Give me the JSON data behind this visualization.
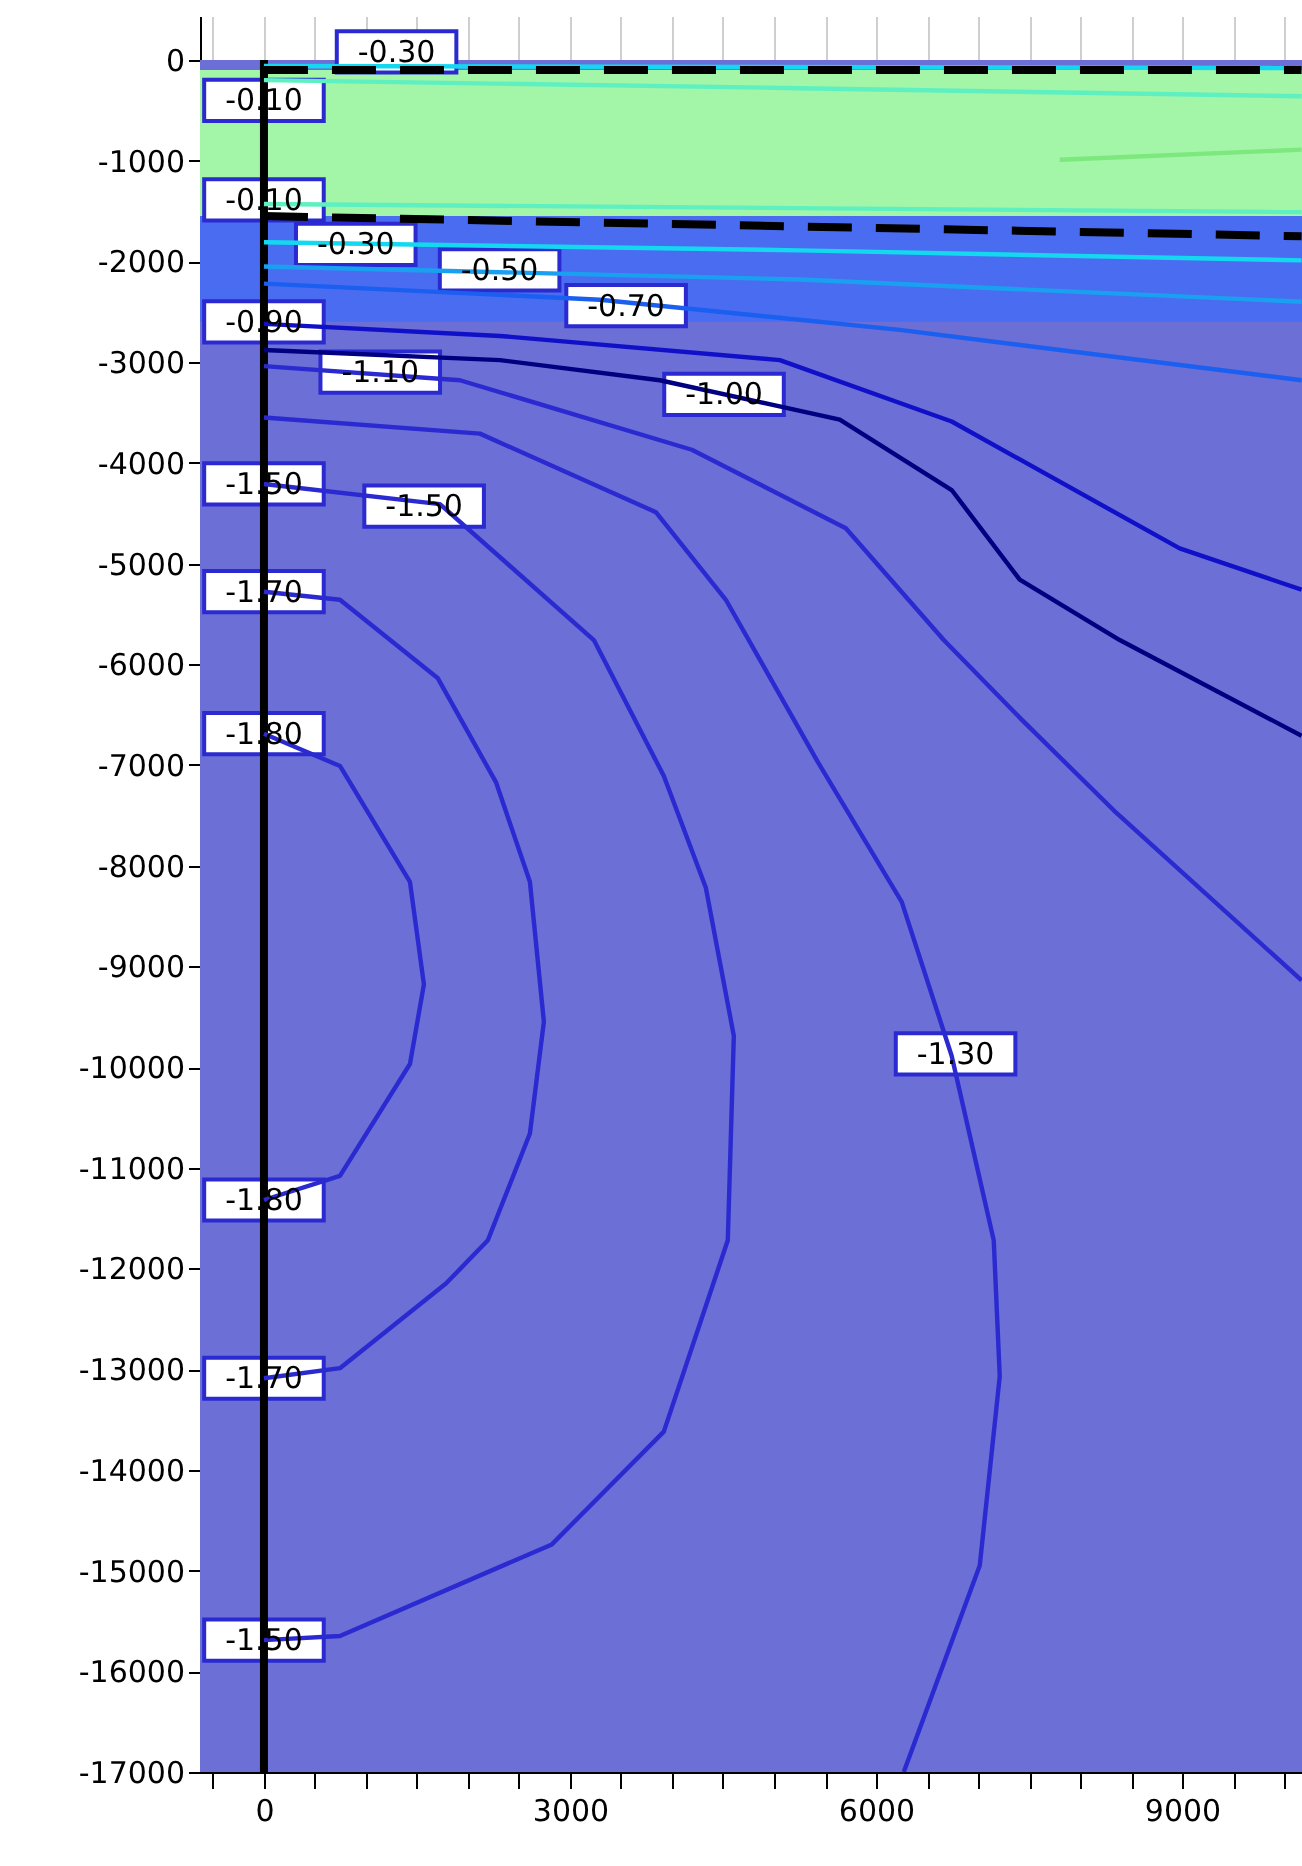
{
  "chart_data": {
    "type": "line",
    "xlim": [
      -627,
      10176
    ],
    "ylim": [
      -17000,
      437
    ],
    "xticks": [
      {
        "value": -500,
        "label": null
      },
      0,
      {
        "value": 500,
        "label": null
      },
      {
        "value": 1000,
        "label": null
      },
      {
        "value": 1500,
        "label": null
      },
      {
        "value": 2000,
        "label": null
      },
      {
        "value": 2500,
        "label": null
      },
      3000,
      {
        "value": 3500,
        "label": null
      },
      {
        "value": 4000,
        "label": null
      },
      {
        "value": 4500,
        "label": null
      },
      {
        "value": 5000,
        "label": null
      },
      {
        "value": 5500,
        "label": null
      },
      6000,
      {
        "value": 6500,
        "label": null
      },
      {
        "value": 7000,
        "label": null
      },
      {
        "value": 7500,
        "label": null
      },
      {
        "value": 8000,
        "label": null
      },
      {
        "value": 8500,
        "label": null
      },
      9000,
      {
        "value": 9500,
        "label": null
      },
      {
        "value": 10000,
        "label": null
      }
    ],
    "yticks": [
      0,
      -1000,
      -2000,
      -3000,
      -4000,
      -5000,
      -6000,
      -7000,
      -8000,
      -9000,
      -10000,
      -11000,
      -12000,
      -13000,
      -14000,
      -15000,
      -16000,
      -17000
    ],
    "grid": true,
    "bands": [
      {
        "axis": "y",
        "from": -17000,
        "to": 0,
        "color": "#6b6fd6"
      },
      {
        "axis": "y",
        "from": -1550,
        "to": -100,
        "color": "#a3f5a8"
      },
      {
        "axis": "y",
        "from": -2600,
        "to": -1550,
        "color": "#4a6cf0"
      }
    ],
    "ref_lines": [
      {
        "axis": "x",
        "value": 0,
        "color": "#000000"
      }
    ],
    "series": [
      {
        "color": "#14d8f0",
        "x": [
          0,
          10172
        ],
        "values": [
          -60,
          -80
        ]
      },
      {
        "color": "#5ef0c0",
        "x": [
          0,
          5253,
          10172
        ],
        "values": [
          -200,
          -280,
          -360
        ]
      },
      {
        "color": "#7de87d",
        "x": [
          7801,
          10172
        ],
        "values": [
          -990,
          -890
        ]
      },
      {
        "color": "#5ef0c0",
        "x": [
          0,
          10172
        ],
        "values": [
          -1430,
          -1510
        ]
      },
      {
        "color": "#14d8f0",
        "x": [
          0,
          5253,
          10172
        ],
        "values": [
          -1810,
          -1890,
          -1990
        ]
      },
      {
        "color": "#1aa0f0",
        "x": [
          0,
          5253,
          10172
        ],
        "values": [
          -2050,
          -2180,
          -2400
        ]
      },
      {
        "color": "#1a5ff0",
        "x": [
          0,
          3293,
          6233,
          10172
        ],
        "values": [
          -2220,
          -2380,
          -2680,
          -3180
        ]
      },
      {
        "color": "#1010c8",
        "x": [
          0,
          2313,
          5057,
          6742,
          8977,
          10172
        ],
        "values": [
          -2620,
          -2740,
          -2980,
          -3590,
          -4850,
          -5260
        ]
      },
      {
        "color": "#000080",
        "x": [
          0,
          2313,
          3881,
          5645,
          6742,
          7409,
          8389,
          10172
        ],
        "values": [
          -2880,
          -2980,
          -3180,
          -3570,
          -4270,
          -5160,
          -5760,
          -6710
        ]
      },
      {
        "color": "#2a2ad0",
        "x": [
          0,
          1921,
          4194,
          5704,
          6664,
          7428,
          8330,
          10172
        ],
        "values": [
          -3040,
          -3180,
          -3870,
          -4650,
          -5760,
          -6550,
          -7450,
          -9140
        ]
      },
      {
        "color": "#2a2ad0",
        "x": [
          0,
          2117,
          3842,
          4528,
          5429,
          6252,
          6742,
          7154,
          7213,
          7017,
          6272
        ],
        "values": [
          -3550,
          -3710,
          -4490,
          -5360,
          -6970,
          -8360,
          -9890,
          -11720,
          -13070,
          -14950,
          -17000
        ]
      },
      {
        "color": "#2a2ad0",
        "x": [
          0,
          1725,
          3234,
          3920,
          4332,
          4606,
          4547,
          3920,
          2822,
          745,
          0
        ],
        "values": [
          -4210,
          -4410,
          -5760,
          -7110,
          -8220,
          -9690,
          -11720,
          -13620,
          -14740,
          -15650,
          -15690
        ]
      },
      {
        "color": "#2a2ad0",
        "x": [
          0,
          745,
          1705,
          2274,
          2607,
          2744,
          2607,
          2195,
          1784,
          745,
          0
        ],
        "values": [
          -5280,
          -5360,
          -6140,
          -7170,
          -8160,
          -9550,
          -10660,
          -11720,
          -12150,
          -12990,
          -13090
        ]
      },
      {
        "color": "#2a2ad0",
        "x": [
          0,
          745,
          1431,
          1568,
          1431,
          745,
          0
        ],
        "values": [
          -6690,
          -7010,
          -8160,
          -9180,
          -9970,
          -11080,
          -11320
        ]
      },
      {
        "color": "#000000",
        "line_style": "dashed",
        "x": [
          0,
          10172
        ],
        "values": [
          -100,
          -100
        ]
      },
      {
        "color": "#000000",
        "line_style": "dashed",
        "x": [
          0,
          10172
        ],
        "values": [
          -1550,
          -1750
        ]
      }
    ],
    "annotations": [
      {
        "text": "-0.30",
        "x": 1300,
        "y": 80
      },
      {
        "text": "-0.10",
        "x": 0,
        "y": -400
      },
      {
        "text": "-0.10",
        "x": 0,
        "y": -1390
      },
      {
        "text": "-0.30",
        "x": 900,
        "y": -1830
      },
      {
        "text": "-0.50",
        "x": 2310,
        "y": -2085
      },
      {
        "text": "-0.70",
        "x": 3550,
        "y": -2440
      },
      {
        "text": "-0.90",
        "x": 0,
        "y": -2600
      },
      {
        "text": "-1.10",
        "x": 1140,
        "y": -3100
      },
      {
        "text": "-1.00",
        "x": 4510,
        "y": -3320
      },
      {
        "text": "-1.50",
        "x": 0,
        "y": -4210
      },
      {
        "text": "-1.50",
        "x": 1570,
        "y": -4430
      },
      {
        "text": "-1.70",
        "x": 0,
        "y": -5280
      },
      {
        "text": "-1.80",
        "x": 0,
        "y": -6690
      },
      {
        "text": "-1.30",
        "x": 6780,
        "y": -9870
      },
      {
        "text": "-1.80",
        "x": 0,
        "y": -11320
      },
      {
        "text": "-1.70",
        "x": 0,
        "y": -13090
      },
      {
        "text": "-1.50",
        "x": 0,
        "y": -15690
      }
    ]
  }
}
